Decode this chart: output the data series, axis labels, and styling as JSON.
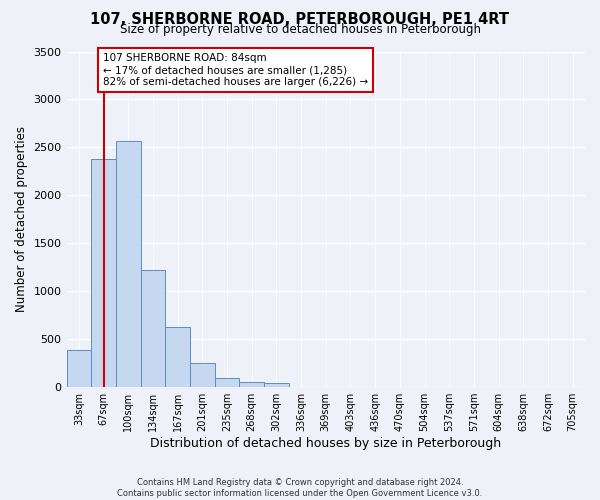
{
  "title": "107, SHERBORNE ROAD, PETERBOROUGH, PE1 4RT",
  "subtitle": "Size of property relative to detached houses in Peterborough",
  "xlabel": "Distribution of detached houses by size in Peterborough",
  "ylabel": "Number of detached properties",
  "bar_labels": [
    "33sqm",
    "67sqm",
    "100sqm",
    "134sqm",
    "167sqm",
    "201sqm",
    "235sqm",
    "268sqm",
    "302sqm",
    "336sqm",
    "369sqm",
    "403sqm",
    "436sqm",
    "470sqm",
    "504sqm",
    "537sqm",
    "571sqm",
    "604sqm",
    "638sqm",
    "672sqm",
    "705sqm"
  ],
  "bar_values": [
    390,
    2380,
    2570,
    1220,
    630,
    255,
    100,
    55,
    40,
    0,
    0,
    0,
    0,
    0,
    0,
    0,
    0,
    0,
    0,
    0,
    0
  ],
  "bar_color": "#c5d8f0",
  "bar_edge_color": "#5a8fc2",
  "marker_label_line1": "107 SHERBORNE ROAD: 84sqm",
  "marker_label_line2": "← 17% of detached houses are smaller (1,285)",
  "marker_label_line3": "82% of semi-detached houses are larger (6,226) →",
  "marker_color": "#cc0000",
  "annotation_box_edge": "#cc0000",
  "ylim": [
    0,
    3500
  ],
  "yticks": [
    0,
    500,
    1000,
    1500,
    2000,
    2500,
    3000,
    3500
  ],
  "footer1": "Contains HM Land Registry data © Crown copyright and database right 2024.",
  "footer2": "Contains public sector information licensed under the Open Government Licence v3.0.",
  "background_color": "#eef2f8",
  "plot_bg_color": "#eef2f8",
  "grid_color": "#ffffff"
}
